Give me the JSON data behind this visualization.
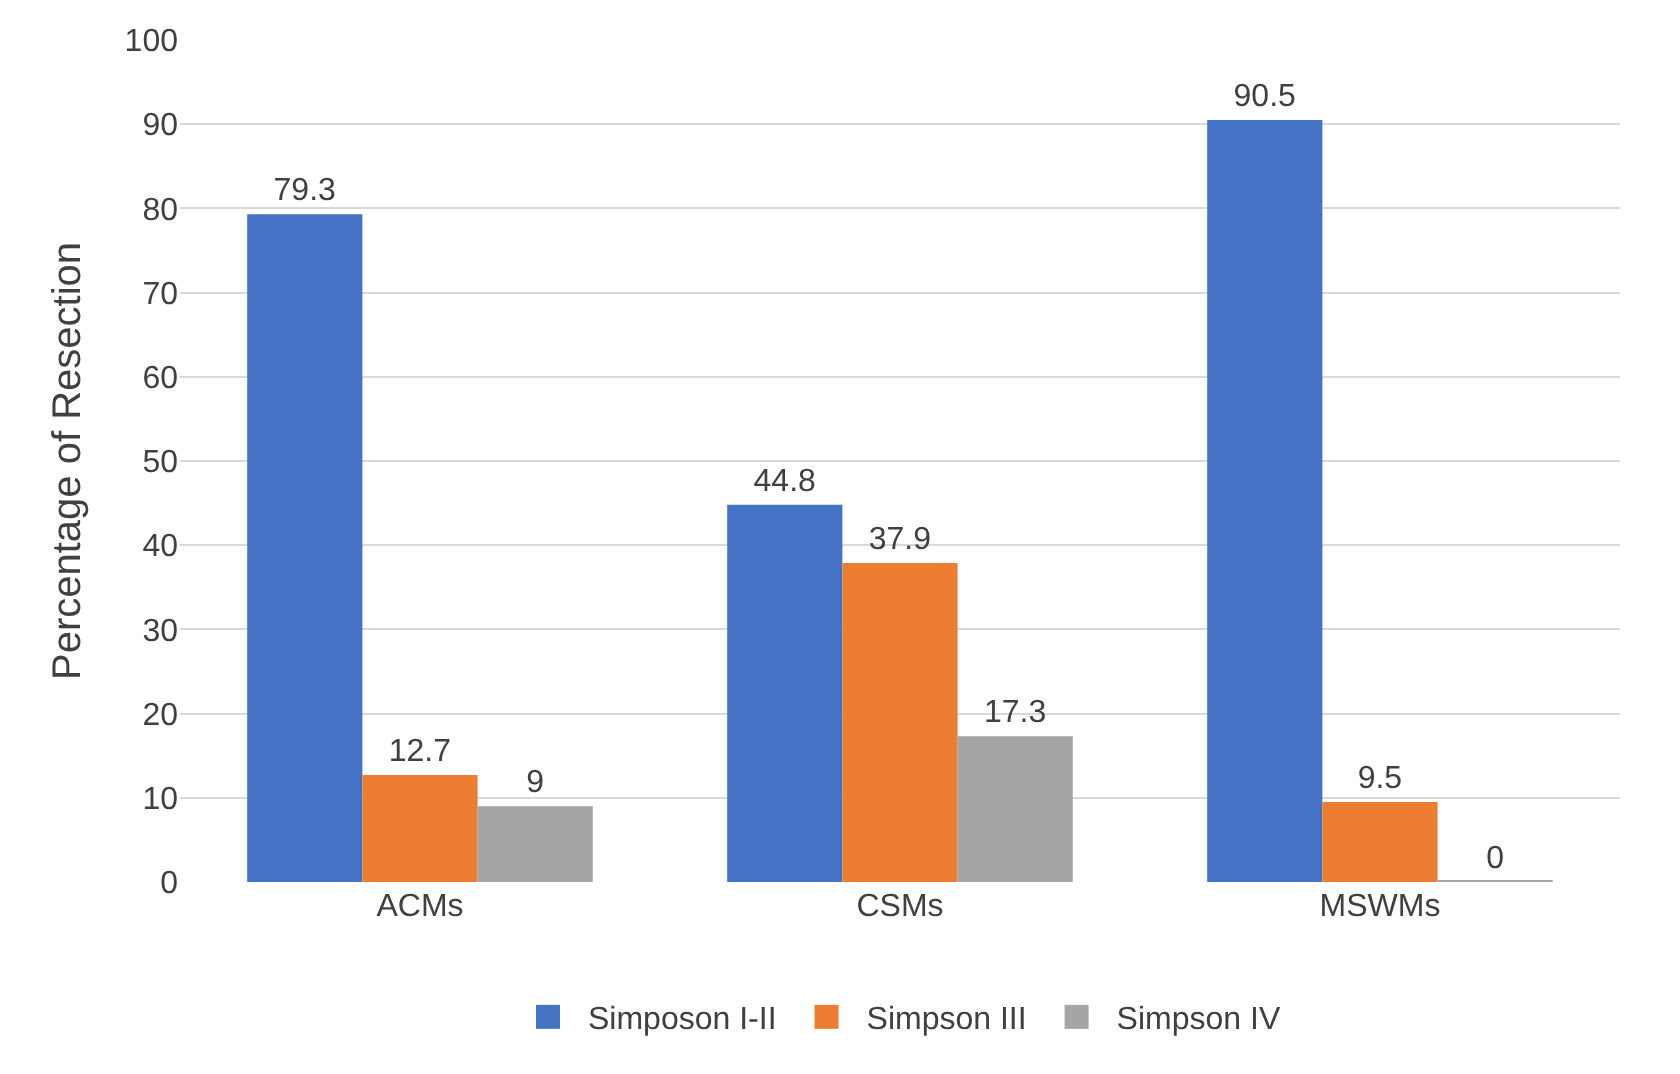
{
  "chart_data": {
    "type": "bar",
    "ylabel": "Percentage of Resection",
    "categories": [
      "ACMs",
      "CSMs",
      "MSWMs"
    ],
    "series": [
      {
        "name": "Simposon I-II",
        "color": "#4472c4",
        "values": [
          79.3,
          44.8,
          90.5
        ]
      },
      {
        "name": "Simpson III",
        "color": "#ed7d31",
        "values": [
          12.7,
          37.9,
          9.5
        ]
      },
      {
        "name": "Simpson IV",
        "color": "#a5a5a5",
        "values": [
          9,
          17.3,
          0
        ]
      }
    ],
    "ylim": [
      0,
      100
    ],
    "yticks": [
      0,
      10,
      20,
      30,
      40,
      50,
      60,
      70,
      80,
      90,
      100
    ],
    "grid": "y",
    "legend": "bottom",
    "data_labels": true
  }
}
